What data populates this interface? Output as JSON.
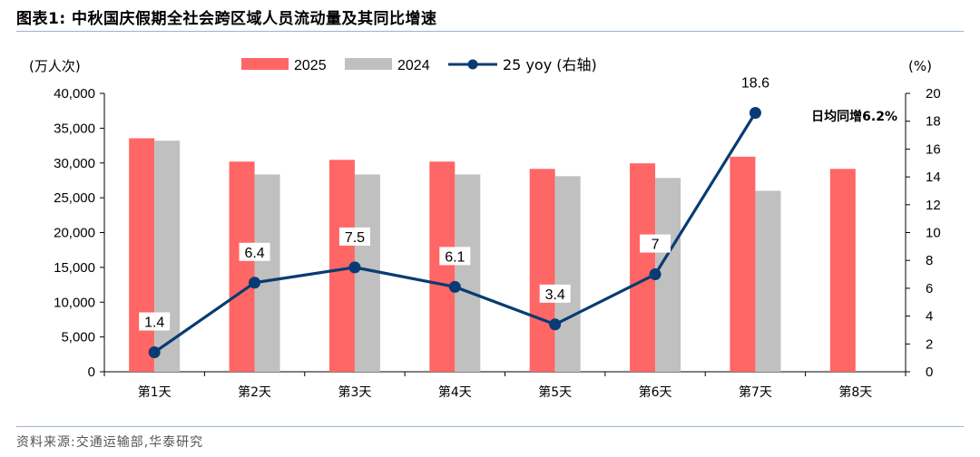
{
  "figure": {
    "title": "图表1:  中秋国庆假期全社会跨区域人员流动量及其同比增速",
    "source": "资料来源:交通运输部,华泰研究"
  },
  "chart_data": {
    "type": "bar",
    "categories": [
      "第1天",
      "第2天",
      "第3天",
      "第4天",
      "第5天",
      "第6天",
      "第7天",
      "第8天"
    ],
    "series": [
      {
        "name": "2025",
        "kind": "bar",
        "axis": "left",
        "color": "#ff6666",
        "values": [
          33550,
          30200,
          30450,
          30200,
          29150,
          29950,
          30900,
          29150
        ]
      },
      {
        "name": "2024",
        "kind": "bar",
        "axis": "left",
        "color": "#c0c0c0",
        "values": [
          33200,
          28350,
          28350,
          28350,
          28100,
          27850,
          26000,
          null
        ]
      },
      {
        "name": "25 yoy (右轴)",
        "kind": "line",
        "axis": "right",
        "color": "#083b73",
        "values": [
          1.4,
          6.4,
          7.5,
          6.1,
          3.4,
          7,
          18.6,
          null
        ],
        "labels": [
          "1.4",
          "6.4",
          "7.5",
          "6.1",
          "3.4",
          "7",
          "18.6",
          null
        ]
      }
    ],
    "y_left": {
      "label": "(万人次)",
      "min": 0,
      "max": 40000,
      "step": 5000,
      "ticks": [
        "0",
        "5,000",
        "10,000",
        "15,000",
        "20,000",
        "25,000",
        "30,000",
        "35,000",
        "40,000"
      ]
    },
    "y_right": {
      "label": "(%)",
      "min": 0,
      "max": 20,
      "step": 2,
      "ticks": [
        "0",
        "2",
        "4",
        "6",
        "8",
        "10",
        "12",
        "14",
        "16",
        "18",
        "20"
      ]
    },
    "annotation": "日均同增6.2%",
    "legend_position": "top-center",
    "grid": false
  }
}
